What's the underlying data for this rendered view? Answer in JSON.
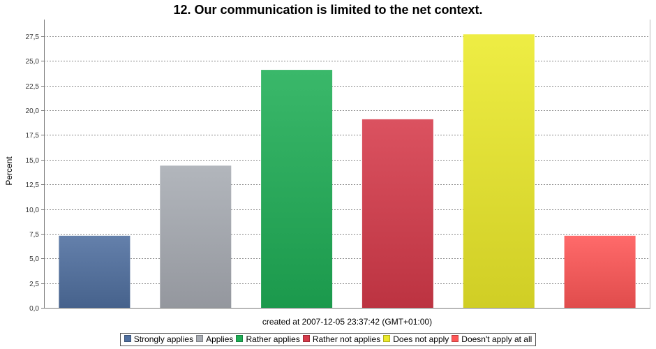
{
  "chart_data": {
    "type": "bar",
    "title": "12. Our communication is limited to the net context.",
    "ylabel": "Percent",
    "xlabel": "created at 2007-12-05 23:37:42 (GMT+01:00)",
    "ylim": [
      0,
      29.2
    ],
    "yticks": [
      "0,0",
      "2,5",
      "5,0",
      "7,5",
      "10,0",
      "12,5",
      "15,0",
      "17,5",
      "20,0",
      "22,5",
      "25,0",
      "27,5"
    ],
    "grid": true,
    "legend_position": "bottom",
    "categories": [
      "Strongly applies",
      "Applies",
      "Rather applies",
      "Rather not applies",
      "Does not apply",
      "Doesn't apply at all"
    ],
    "values": [
      7.3,
      14.4,
      24.1,
      19.1,
      27.7,
      7.3
    ],
    "colors": [
      "#4f6f9f",
      "#a8acb3",
      "#1fae56",
      "#d63a4a",
      "#ecea2a",
      "#ff5656"
    ]
  }
}
